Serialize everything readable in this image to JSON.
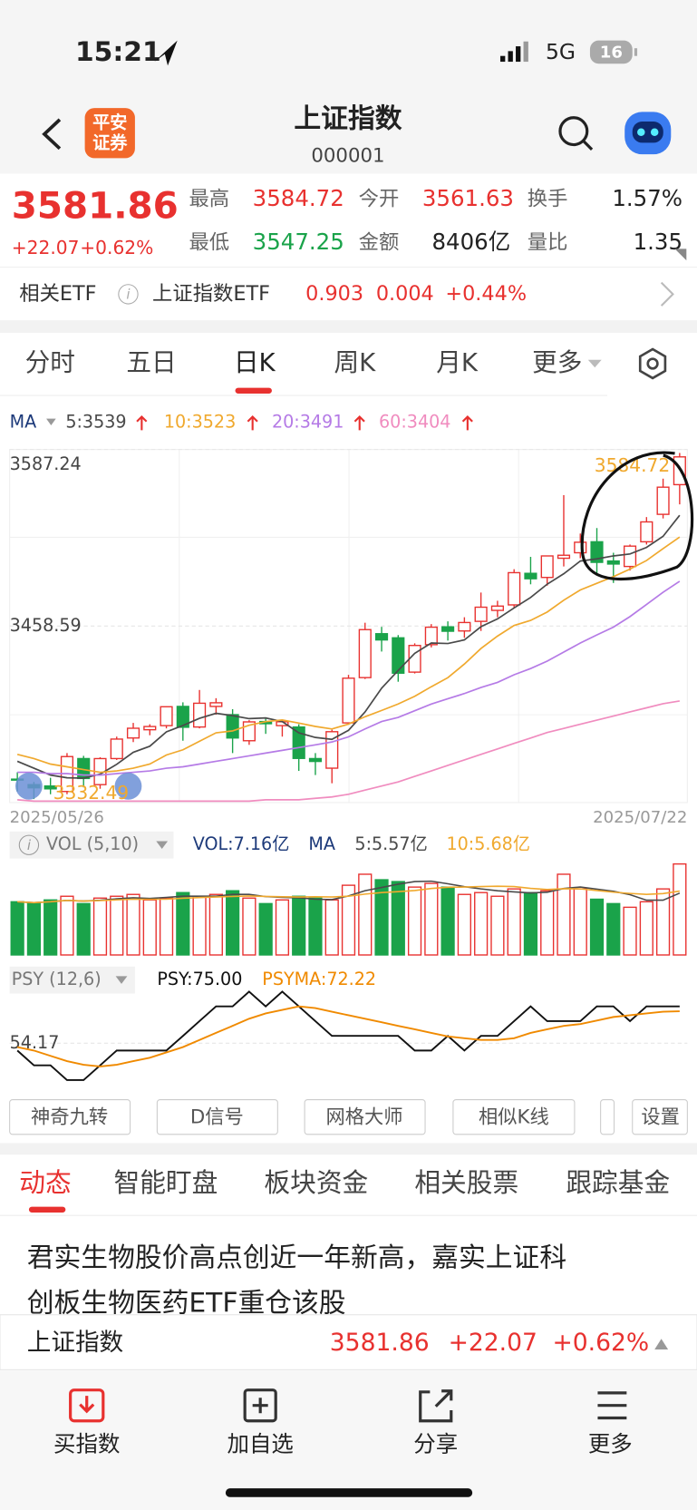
{
  "status": {
    "time": "15:21",
    "network": "5G",
    "battery": "16"
  },
  "header": {
    "logo": [
      "平安",
      "证券"
    ],
    "title": "上证指数",
    "code": "000001"
  },
  "quote": {
    "price": "3581.86",
    "change": "+22.07",
    "pct": "+0.62%",
    "fields": [
      {
        "label": "最高",
        "value": "3584.72"
      },
      {
        "label": "今开",
        "value": "3561.63"
      },
      {
        "label": "换手",
        "value": "1.57%"
      },
      {
        "label": "最低",
        "value": "3547.25"
      },
      {
        "label": "金额",
        "value": "8406亿"
      },
      {
        "label": "量比",
        "value": "1.35"
      }
    ]
  },
  "etf": {
    "label": "相关ETF",
    "name": "上证指数ETF",
    "price": "0.903",
    "change": "0.004",
    "pct": "+0.44%"
  },
  "tabs": [
    "分时",
    "五日",
    "日K",
    "周K",
    "月K",
    "更多"
  ],
  "chart_data": [
    {
      "type": "candlestick",
      "indicator": "MA",
      "categories": [
        "2025/05/26",
        null,
        null,
        null,
        null,
        null,
        null,
        null,
        null,
        null,
        null,
        null,
        null,
        null,
        null,
        null,
        null,
        null,
        null,
        null,
        null,
        null,
        null,
        null,
        null,
        null,
        null,
        null,
        null,
        null,
        null,
        null,
        null,
        null,
        null,
        null,
        null,
        null,
        null,
        null,
        "2025/07/22"
      ],
      "open": [
        3347,
        3343,
        3342,
        3338,
        3362,
        3343,
        3362,
        3377,
        3383,
        3386,
        3400,
        3385,
        3400,
        3394,
        3375,
        3389,
        3386,
        3385,
        3362,
        3355,
        3388,
        3421,
        3453,
        3450,
        3425,
        3445,
        3458,
        3455,
        3462,
        3470,
        3474,
        3497,
        3494,
        3508,
        3512,
        3520,
        3506,
        3502,
        3520,
        3540,
        3561.63
      ],
      "high": [
        3352,
        3345,
        3348,
        3366,
        3364,
        3363,
        3378,
        3388,
        3387,
        3400,
        3403,
        3412,
        3406,
        3398,
        3390,
        3392,
        3390,
        3387,
        3366,
        3383,
        3423,
        3461,
        3458,
        3452,
        3446,
        3460,
        3462,
        3465,
        3483,
        3477,
        3500,
        3509,
        3510,
        3554,
        3526,
        3530,
        3512,
        3518,
        3538,
        3566,
        3584.72
      ],
      "low": [
        3338,
        3332.49,
        3336,
        3336,
        3341,
        3340,
        3361,
        3374,
        3379,
        3384,
        3375,
        3384,
        3394,
        3366,
        3372,
        3380,
        3378,
        3353,
        3350,
        3344,
        3387,
        3420,
        3440,
        3418,
        3424,
        3443,
        3448,
        3450,
        3455,
        3465,
        3472,
        3489,
        3488,
        3502,
        3508,
        3497,
        3490,
        3499,
        3518,
        3537,
        3547.25
      ],
      "close": [
        3346.84,
        3340.69,
        3339.93,
        3363.45,
        3347.49,
        3361.98,
        3376.2,
        3384.1,
        3385.36,
        3399.77,
        3384.82,
        3402.32,
        3402.66,
        3377,
        3388.73,
        3387.4,
        3388.81,
        3362.11,
        3359.9,
        3381.58,
        3420.57,
        3455.97,
        3448.45,
        3424.23,
        3444.43,
        3457.75,
        3454.79,
        3461.15,
        3472.32,
        3473.13,
        3497.48,
        3493.05,
        3509.68,
        3510.18,
        3519.65,
        3505,
        3503.78,
        3516.83,
        3534.48,
        3559.79,
        3581.86
      ],
      "ylim": [
        3329.94,
        3587.24
      ],
      "yticks": [
        3587.24,
        3458.59
      ],
      "colors": {
        "up": "#e8312f",
        "down": "#1aa34a"
      },
      "series": [
        {
          "name": "5:3539",
          "color": "#4a4a4a",
          "values": [
            3360,
            3355,
            3350,
            3348,
            3347.7,
            3350.7,
            3357.8,
            3366.6,
            3371,
            3381.5,
            3386.1,
            3391.3,
            3395,
            3393.3,
            3391.1,
            3391.6,
            3388.9,
            3380.8,
            3377.4,
            3376,
            3382.6,
            3396,
            3413.3,
            3426.2,
            3438.7,
            3446.2,
            3445.9,
            3448.5,
            3458.1,
            3463.8,
            3471.8,
            3479.4,
            3489.1,
            3496.7,
            3506,
            3507.5,
            3509.7,
            3511.1,
            3515.9,
            3524,
            3539.3
          ]
        },
        {
          "name": "10:3523",
          "color": "#f0a92e",
          "values": [
            3365,
            3362,
            3358,
            3356,
            3354,
            3352,
            3353,
            3355,
            3358,
            3364.6,
            3368.4,
            3374.6,
            3380.8,
            3382.2,
            3386.3,
            3388.9,
            3390.1,
            3387.9,
            3385.4,
            3383.6,
            3387.1,
            3392.5,
            3397.1,
            3401.8,
            3407.4,
            3414.4,
            3421,
            3430.9,
            3442.2,
            3451.3,
            3459,
            3462.7,
            3468.8,
            3477.4,
            3484.9,
            3489.7,
            3494.6,
            3500.1,
            3506.3,
            3515,
            3523.4
          ]
        },
        {
          "name": "20:3491",
          "color": "#b57be6",
          "values": [
            3352,
            3352,
            3351,
            3351,
            3350,
            3350,
            3351,
            3352,
            3353,
            3355,
            3356,
            3358,
            3360,
            3362,
            3364,
            3366,
            3368,
            3370,
            3372,
            3374.1,
            3377.8,
            3383.6,
            3389,
            3392,
            3396.9,
            3401.7,
            3405.6,
            3409.4,
            3413.8,
            3417.5,
            3423.1,
            3427.6,
            3433,
            3439.6,
            3446.2,
            3452.1,
            3457.8,
            3465.5,
            3474.3,
            3483.2,
            3491.2
          ]
        },
        {
          "name": "60:3404",
          "color": "#f08cbf",
          "values": [
            3332,
            3331,
            3331,
            3331,
            3331,
            3331,
            3331,
            3331,
            3331,
            3331,
            3331,
            3331,
            3331,
            3331,
            3331,
            3332,
            3332,
            3332,
            3333,
            3334,
            3336,
            3339,
            3342,
            3345,
            3349,
            3353,
            3357,
            3361,
            3365,
            3369,
            3373,
            3377,
            3381,
            3384,
            3387,
            3390,
            3393,
            3396,
            3399,
            3402,
            3404
          ]
        }
      ]
    },
    {
      "type": "bar",
      "indicator": "VOL (5,10)",
      "title": "VOL:7.16亿",
      "ma_title": "MA",
      "values": [
        5.1,
        5.0,
        5.2,
        5.4,
        5.0,
        5.3,
        5.4,
        5.5,
        5.2,
        5.3,
        5.6,
        5.4,
        5.5,
        5.7,
        5.3,
        5.0,
        5.2,
        5.4,
        5.3,
        5.2,
        6.0,
        6.6,
        6.3,
        6.2,
        5.9,
        6.1,
        5.9,
        5.5,
        5.6,
        5.4,
        5.8,
        5.6,
        5.7,
        6.6,
        5.8,
        5.24,
        5.0,
        4.8,
        5.1,
        5.8,
        7.16
      ],
      "ylim": [
        2.2,
        7.3
      ],
      "series": [
        {
          "name": "5:5.57亿",
          "color": "#4a4a4a"
        },
        {
          "name": "10:5.68亿",
          "color": "#f0a92e"
        }
      ]
    },
    {
      "type": "line",
      "indicator": "PSY (12,6)",
      "ylim": [
        25,
        83.33
      ],
      "yticks": [
        54.17
      ],
      "series": [
        {
          "name": "PSY:75.00",
          "color": "#111111",
          "values": [
            50,
            41.67,
            41.67,
            33.33,
            33.33,
            41.67,
            50,
            50,
            50,
            50,
            58.33,
            66.67,
            75,
            75,
            83.33,
            75,
            83.33,
            75,
            66.67,
            58.33,
            58.33,
            58.33,
            58.33,
            58.33,
            50,
            50,
            58.33,
            50,
            58.33,
            58.33,
            66.67,
            75,
            66.67,
            66.67,
            66.67,
            75,
            75,
            66.67,
            75,
            75,
            75
          ]
        },
        {
          "name": "PSYMA:72.22",
          "color": "#f08a00",
          "values": [
            52,
            50,
            47,
            44,
            42,
            41,
            42,
            44,
            46,
            49,
            52,
            56,
            60,
            64,
            68,
            71,
            73,
            75,
            74,
            72,
            70,
            68,
            66,
            64,
            62,
            60,
            58,
            57,
            56,
            56,
            57,
            60,
            62,
            64,
            65,
            67,
            69,
            70,
            71,
            72,
            72.22
          ]
        }
      ]
    }
  ],
  "tools": [
    "神奇九转",
    "D信号",
    "网格大师",
    "相似K线",
    "设置"
  ],
  "news_tabs": [
    "动态",
    "智能盯盘",
    "板块资金",
    "相关股票",
    "跟踪基金"
  ],
  "news": {
    "lines": [
      "君实生物股价高点创近一年新高，嘉实上证科",
      "创板生物医药ETF重仓该股"
    ]
  },
  "footer_quote": {
    "name": "上证指数",
    "price": "3581.86",
    "change": "+22.07",
    "pct": "+0.62%"
  },
  "nav": [
    "买指数",
    "加自选",
    "分享",
    "更多"
  ]
}
